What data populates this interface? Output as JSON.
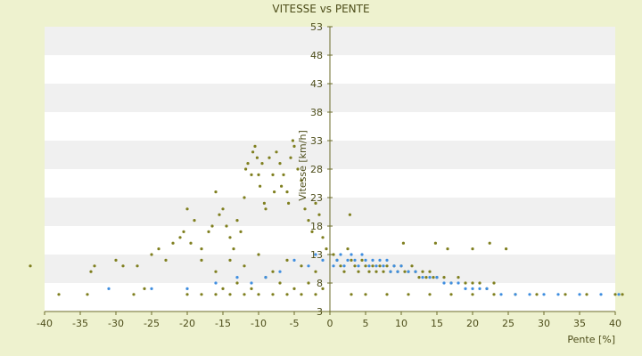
{
  "colors": {
    "background": "#eef2cf",
    "plot_band_light": "#ffffff",
    "plot_band_dark": "#f0f0f0",
    "axis": "#6b6b2a",
    "text": "#4d4d1a",
    "series_olive": "#7f7f1f",
    "series_blue": "#3f8ee0"
  },
  "chart_data": {
    "type": "scatter",
    "title": "VITESSE vs PENTE",
    "xlabel": "Pente [%]",
    "ylabel": "Vitesse [km/h]",
    "xlim": [
      -40,
      40
    ],
    "ylim": [
      3,
      53
    ],
    "xticks": [
      "-40",
      "-35",
      "-30",
      "-25",
      "-20",
      "-15",
      "-10",
      "-5",
      "0",
      "5",
      "10",
      "15",
      "20",
      "25",
      "30",
      "35",
      "40"
    ],
    "yticks": [
      "3",
      "8",
      "13",
      "18",
      "23",
      "28",
      "33",
      "38",
      "43",
      "48",
      "53"
    ],
    "grid": "alternating horizontal bands",
    "series": [
      {
        "color": "#7f7f1f",
        "points": [
          [
            -42,
            11
          ],
          [
            -38,
            6
          ],
          [
            -34,
            6
          ],
          [
            -33.5,
            10
          ],
          [
            -33,
            11
          ],
          [
            -30,
            12
          ],
          [
            -29,
            11
          ],
          [
            -27.5,
            6
          ],
          [
            -27,
            11
          ],
          [
            -26,
            7
          ],
          [
            -25,
            13
          ],
          [
            -24,
            14
          ],
          [
            -23,
            12
          ],
          [
            -22,
            15
          ],
          [
            -21,
            16
          ],
          [
            -20.5,
            17
          ],
          [
            -20,
            21
          ],
          [
            -19.5,
            15
          ],
          [
            -19,
            19
          ],
          [
            -18,
            14
          ],
          [
            -17,
            17
          ],
          [
            -16.5,
            18
          ],
          [
            -16,
            24
          ],
          [
            -15.5,
            20
          ],
          [
            -15,
            21
          ],
          [
            -14.5,
            18
          ],
          [
            -14,
            16
          ],
          [
            -13.5,
            14
          ],
          [
            -13,
            19
          ],
          [
            -12.5,
            17
          ],
          [
            -12,
            23
          ],
          [
            -11.8,
            28
          ],
          [
            -11.5,
            29
          ],
          [
            -11,
            27
          ],
          [
            -10.8,
            31
          ],
          [
            -10.5,
            32
          ],
          [
            -10.2,
            30
          ],
          [
            -10,
            27
          ],
          [
            -9.8,
            25
          ],
          [
            -9.5,
            29
          ],
          [
            -9.2,
            22
          ],
          [
            -9,
            21
          ],
          [
            -8.5,
            30
          ],
          [
            -8,
            27
          ],
          [
            -7.8,
            24
          ],
          [
            -7.5,
            31
          ],
          [
            -7,
            29
          ],
          [
            -6.8,
            25
          ],
          [
            -6.5,
            27
          ],
          [
            -6,
            24
          ],
          [
            -5.8,
            22
          ],
          [
            -5.5,
            30
          ],
          [
            -5.2,
            33
          ],
          [
            -5,
            32
          ],
          [
            -4.5,
            28
          ],
          [
            -4,
            26
          ],
          [
            -3.5,
            21
          ],
          [
            -3,
            19
          ],
          [
            -2.5,
            17
          ],
          [
            -2,
            22
          ],
          [
            -1.5,
            20
          ],
          [
            -1,
            16
          ],
          [
            -0.5,
            14
          ],
          [
            -18,
            12
          ],
          [
            -16,
            10
          ],
          [
            -14,
            12
          ],
          [
            -12,
            11
          ],
          [
            -10,
            13
          ],
          [
            -8,
            10
          ],
          [
            -6,
            12
          ],
          [
            -4,
            11
          ],
          [
            -2,
            10
          ],
          [
            -15,
            7
          ],
          [
            -13,
            8
          ],
          [
            -11,
            7
          ],
          [
            -9,
            9
          ],
          [
            -7,
            8
          ],
          [
            -5,
            7
          ],
          [
            -3,
            8
          ],
          [
            -1,
            7
          ],
          [
            -20,
            6
          ],
          [
            -18,
            6
          ],
          [
            -16,
            6
          ],
          [
            -14,
            6
          ],
          [
            -12,
            6
          ],
          [
            -10,
            6
          ],
          [
            -8,
            6
          ],
          [
            -6,
            6
          ],
          [
            -4,
            6
          ],
          [
            -2,
            6
          ],
          [
            0.5,
            13
          ],
          [
            1,
            12
          ],
          [
            1.5,
            11
          ],
          [
            2,
            10
          ],
          [
            2.5,
            14
          ],
          [
            3,
            12
          ],
          [
            3.5,
            11
          ],
          [
            4,
            10
          ],
          [
            4.5,
            12
          ],
          [
            5,
            11
          ],
          [
            5.5,
            10
          ],
          [
            6,
            11
          ],
          [
            6.5,
            10
          ],
          [
            7,
            11
          ],
          [
            7.5,
            10
          ],
          [
            8,
            11
          ],
          [
            8.5,
            10
          ],
          [
            9,
            11
          ],
          [
            9.5,
            10
          ],
          [
            10,
            11
          ],
          [
            10.5,
            10
          ],
          [
            11,
            10
          ],
          [
            11.5,
            11
          ],
          [
            12,
            10
          ],
          [
            12.5,
            9
          ],
          [
            13,
            10
          ],
          [
            13.5,
            9
          ],
          [
            14,
            10
          ],
          [
            14.5,
            9
          ],
          [
            15,
            9
          ],
          [
            16,
            9
          ],
          [
            17,
            8
          ],
          [
            18,
            9
          ],
          [
            19,
            8
          ],
          [
            20,
            8
          ],
          [
            21,
            8
          ],
          [
            22,
            7
          ],
          [
            23,
            8
          ],
          [
            2.8,
            20
          ],
          [
            10.3,
            15
          ],
          [
            14.8,
            15
          ],
          [
            16.5,
            14
          ],
          [
            20,
            14
          ],
          [
            22.4,
            15
          ],
          [
            24.7,
            14
          ],
          [
            3,
            6
          ],
          [
            5,
            6
          ],
          [
            8,
            6
          ],
          [
            11,
            6
          ],
          [
            14,
            6
          ],
          [
            17,
            6
          ],
          [
            20,
            6
          ],
          [
            23,
            6
          ],
          [
            26,
            6
          ],
          [
            29,
            6
          ],
          [
            33,
            6
          ],
          [
            36,
            6
          ],
          [
            40,
            6
          ],
          [
            41,
            6
          ]
        ]
      },
      {
        "color": "#3f8ee0",
        "points": [
          [
            -31,
            7
          ],
          [
            -25,
            7
          ],
          [
            -20,
            7
          ],
          [
            -16,
            8
          ],
          [
            -13,
            9
          ],
          [
            -11,
            8
          ],
          [
            -9,
            9
          ],
          [
            -7,
            10
          ],
          [
            -5,
            12
          ],
          [
            -3,
            11
          ],
          [
            -2,
            13
          ],
          [
            -1,
            12
          ],
          [
            0.5,
            11
          ],
          [
            1,
            12
          ],
          [
            1.5,
            13
          ],
          [
            2,
            11
          ],
          [
            2.5,
            12
          ],
          [
            3,
            13
          ],
          [
            3.5,
            12
          ],
          [
            4,
            11
          ],
          [
            4.5,
            13
          ],
          [
            5,
            12
          ],
          [
            5.5,
            11
          ],
          [
            6,
            12
          ],
          [
            6.5,
            11
          ],
          [
            7,
            12
          ],
          [
            7.5,
            11
          ],
          [
            8,
            12
          ],
          [
            8.5,
            10
          ],
          [
            9,
            11
          ],
          [
            9.5,
            10
          ],
          [
            10,
            11
          ],
          [
            11,
            10
          ],
          [
            12,
            10
          ],
          [
            13,
            9
          ],
          [
            14,
            9
          ],
          [
            15,
            9
          ],
          [
            16,
            8
          ],
          [
            17,
            8
          ],
          [
            18,
            8
          ],
          [
            19,
            7
          ],
          [
            20,
            7
          ],
          [
            21,
            7
          ],
          [
            22,
            7
          ],
          [
            24,
            6
          ],
          [
            26,
            6
          ],
          [
            28,
            6
          ],
          [
            30,
            6
          ],
          [
            32,
            6
          ],
          [
            35,
            6
          ],
          [
            38,
            6
          ],
          [
            40.5,
            6
          ]
        ]
      }
    ]
  }
}
